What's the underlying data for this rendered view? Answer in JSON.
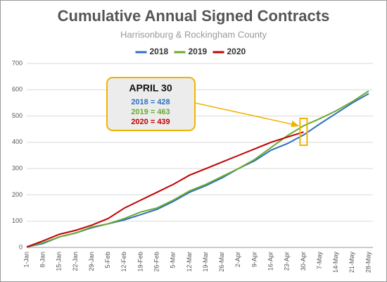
{
  "chart_data": {
    "type": "line",
    "title": "Cumulative Annual Signed Contracts",
    "subtitle": "Harrisonburg & Rockingham County",
    "categories": [
      "1-Jan",
      "8-Jan",
      "15-Jan",
      "22-Jan",
      "29-Jan",
      "5-Feb",
      "12-Feb",
      "19-Feb",
      "26-Feb",
      "5-Mar",
      "12-Mar",
      "19-Mar",
      "26-Mar",
      "2-Apr",
      "9-Apr",
      "16-Apr",
      "23-Apr",
      "30-Apr",
      "7-May",
      "14-May",
      "21-May",
      "28-May"
    ],
    "series": [
      {
        "name": "2018",
        "color": "#2e6fc0",
        "values": [
          2,
          15,
          40,
          55,
          75,
          90,
          105,
          125,
          145,
          175,
          210,
          235,
          265,
          300,
          330,
          370,
          395,
          428,
          470,
          510,
          550,
          585
        ]
      },
      {
        "name": "2019",
        "color": "#6aaa2e",
        "values": [
          2,
          18,
          40,
          55,
          78,
          90,
          110,
          135,
          150,
          180,
          215,
          240,
          270,
          300,
          335,
          380,
          425,
          463,
          490,
          520,
          555,
          595
        ]
      },
      {
        "name": "2020",
        "color": "#c00000",
        "values": [
          2,
          25,
          50,
          65,
          85,
          110,
          150,
          180,
          210,
          240,
          275,
          300,
          325,
          350,
          375,
          400,
          420,
          439,
          null,
          null,
          null,
          null
        ]
      }
    ],
    "ylim": [
      0,
      700
    ],
    "yticks": [
      0,
      100,
      200,
      300,
      400,
      500,
      600,
      700
    ],
    "grid": true,
    "legend": "top",
    "annotation": {
      "title": "APRIL 30",
      "lines": [
        "2018 = 428",
        "2019 = 463",
        "2020 = 439"
      ]
    }
  }
}
